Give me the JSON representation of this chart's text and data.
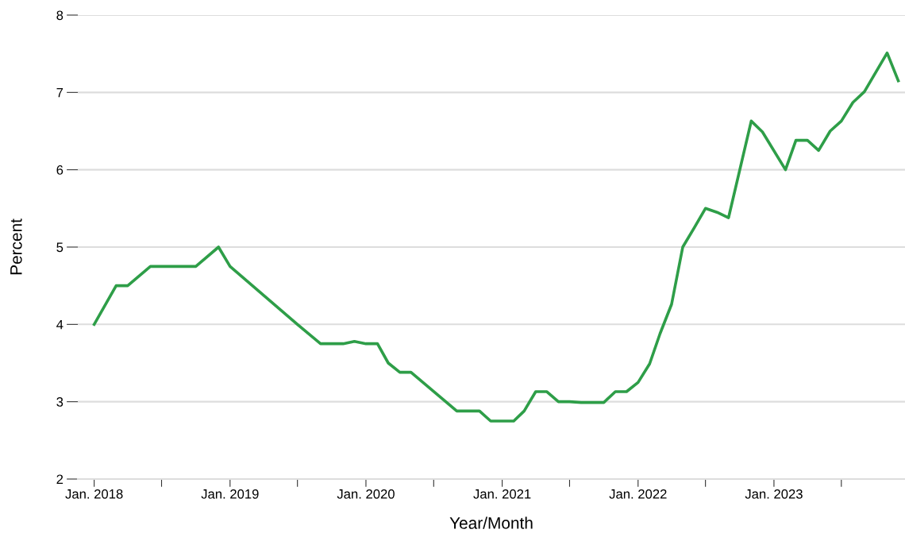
{
  "chart_data": {
    "type": "line",
    "xlabel": "Year/Month",
    "ylabel": "Percent",
    "x": [
      "2018-01",
      "2018-03",
      "2018-04",
      "2018-06",
      "2018-10",
      "2018-12",
      "2019-01",
      "2019-07",
      "2019-09",
      "2019-11",
      "2019-12",
      "2020-01",
      "2020-02",
      "2020-03",
      "2020-04",
      "2020-05",
      "2020-09",
      "2020-11",
      "2020-12",
      "2021-02",
      "2021-03",
      "2021-04",
      "2021-05",
      "2021-06",
      "2021-07",
      "2021-08",
      "2021-10",
      "2021-11",
      "2021-12",
      "2022-01",
      "2022-02",
      "2022-03",
      "2022-04",
      "2022-05",
      "2022-06",
      "2022-07",
      "2022-08",
      "2022-09",
      "2022-11",
      "2022-12",
      "2023-02",
      "2023-03",
      "2023-04",
      "2023-05",
      "2023-06",
      "2023-07",
      "2023-08",
      "2023-09",
      "2023-11",
      "2023-12"
    ],
    "series": [
      {
        "color": "#2e9e48",
        "values": [
          4.0,
          4.5,
          4.5,
          4.75,
          4.75,
          5.0,
          4.75,
          4.0,
          3.75,
          3.75,
          3.78,
          3.75,
          3.75,
          3.5,
          3.38,
          3.38,
          2.88,
          2.88,
          2.75,
          2.75,
          2.88,
          3.13,
          3.13,
          3.0,
          3.0,
          2.99,
          2.99,
          3.13,
          3.13,
          3.25,
          3.49,
          3.88,
          4.26,
          5.0,
          5.25,
          5.5,
          5.45,
          5.38,
          6.63,
          6.49,
          6.0,
          6.38,
          6.38,
          6.25,
          6.5,
          6.63,
          6.87,
          7.01,
          7.51,
          7.15
        ]
      }
    ],
    "xlim": [
      "2017-11-18",
      "2023-12-19"
    ],
    "xticks": [
      {
        "value": "2018-01",
        "label": "Jan. 2018"
      },
      {
        "value": "2018-07",
        "label": null
      },
      {
        "value": "2019-01",
        "label": "Jan. 2019"
      },
      {
        "value": "2019-07",
        "label": null
      },
      {
        "value": "2020-01",
        "label": "Jan. 2020"
      },
      {
        "value": "2020-07",
        "label": null
      },
      {
        "value": "2021-01",
        "label": "Jan. 2021"
      },
      {
        "value": "2021-07",
        "label": null
      },
      {
        "value": "2022-01",
        "label": "Jan. 2022"
      },
      {
        "value": "2022-07",
        "label": null
      },
      {
        "value": "2023-01",
        "label": "Jan. 2023"
      },
      {
        "value": "2023-07",
        "label": null
      }
    ],
    "ylim": [
      2,
      8
    ],
    "yticks": [
      2,
      3,
      4,
      5,
      6,
      7,
      8
    ],
    "grid": "y",
    "line_style": "solid",
    "marker": "none"
  }
}
